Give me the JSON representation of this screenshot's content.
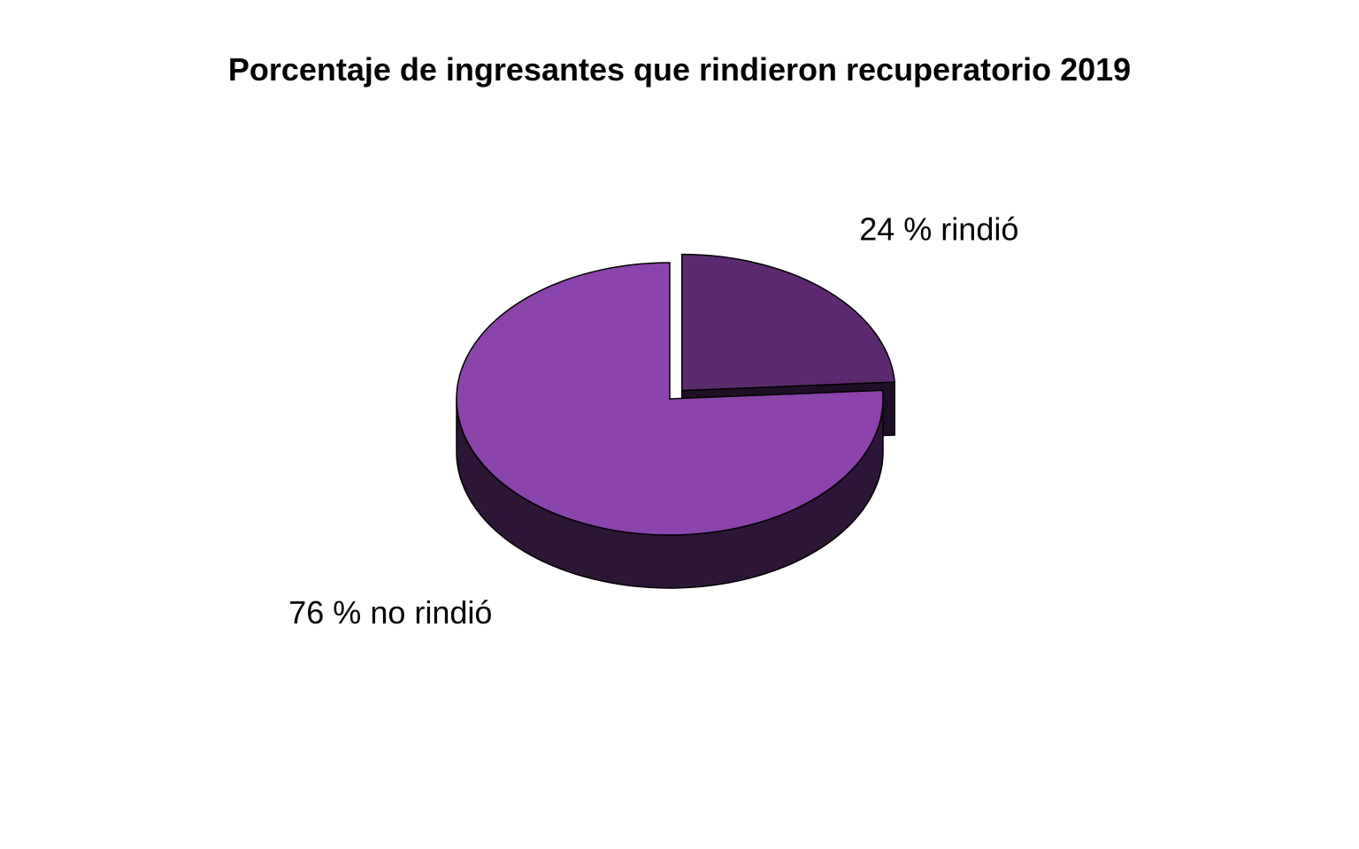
{
  "chart_data": {
    "type": "pie",
    "title": "Porcentaje de ingresantes que rindieron recuperatorio 2019",
    "three_d": true,
    "exploded": true,
    "start_angle_deg": 90,
    "direction": "clockwise",
    "slices": [
      {
        "value": 24,
        "label": "24 % rindió",
        "top_color": "#5c2b6f",
        "side_color": "#1e0f26"
      },
      {
        "value": 76,
        "label": "76 % no rindió",
        "top_color": "#8b44ac",
        "side_color": "#2c1535"
      }
    ]
  }
}
